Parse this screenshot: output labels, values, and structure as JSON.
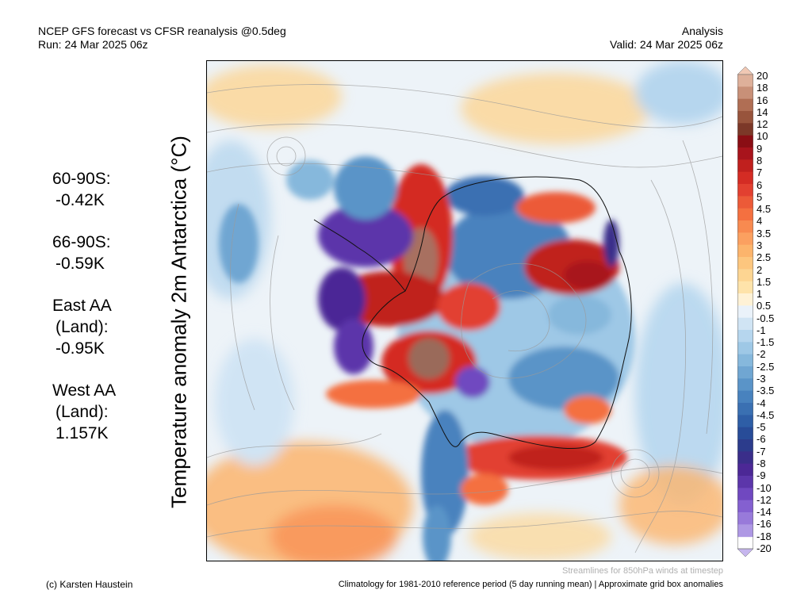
{
  "header": {
    "title_line1": "NCEP GFS forecast vs CFSR reanalysis @0.5deg",
    "title_line2": "Run: 24 Mar 2025 06z",
    "right_line1": "Analysis",
    "right_line2": "Valid: 24 Mar 2025 06z"
  },
  "map": {
    "ylabel": "Temperature anomaly 2m Antarctica (°C)"
  },
  "stats": [
    {
      "label_lines": [
        "60-90S:"
      ],
      "value": "-0.42K"
    },
    {
      "label_lines": [
        "66-90S:"
      ],
      "value": "-0.59K"
    },
    {
      "label_lines": [
        "East AA",
        "(Land):"
      ],
      "value": "-0.95K"
    },
    {
      "label_lines": [
        "West AA",
        "(Land):"
      ],
      "value": "1.157K"
    }
  ],
  "colorbar": {
    "labels": [
      "20",
      "18",
      "16",
      "14",
      "12",
      "10",
      "9",
      "8",
      "7",
      "6",
      "5",
      "4.5",
      "4",
      "3.5",
      "3",
      "2.5",
      "2",
      "1.5",
      "1",
      "0.5",
      "-0.5",
      "-1",
      "-1.5",
      "-2",
      "-2.5",
      "-3",
      "-3.5",
      "-4",
      "-4.5",
      "-5",
      "-6",
      "-7",
      "-8",
      "-9",
      "-10",
      "-12",
      "-14",
      "-16",
      "-18",
      "-20"
    ],
    "colors": [
      "#f0c8b4",
      "#deb09a",
      "#c89078",
      "#b06e54",
      "#98543c",
      "#7c3828",
      "#8a0e14",
      "#a8141c",
      "#c0201e",
      "#d42c24",
      "#e24030",
      "#ec5a38",
      "#f47040",
      "#f88a50",
      "#fba060",
      "#fcb46c",
      "#fdc67e",
      "#fdd592",
      "#fee3aa",
      "#fff2d6",
      "#eaf2fa",
      "#d0e4f4",
      "#b6d6ee",
      "#9ec8e6",
      "#86b8dc",
      "#70a6d2",
      "#5a94c8",
      "#4882be",
      "#3a70b2",
      "#2e5ea6",
      "#284c98",
      "#2c3c8c",
      "#3a2e8a",
      "#4c2896",
      "#5c36aa",
      "#7048c0",
      "#8460d0",
      "#987ada",
      "#ae98e4",
      "#c6b6ee"
    ]
  },
  "footer": {
    "credit": "(c) Karsten Haustein",
    "note": "Streamlines for 850hPa winds at timestep",
    "climatology": "Climatology for 1981-2010 reference period (5 day running mean) | Approximate grid box anomalies"
  }
}
